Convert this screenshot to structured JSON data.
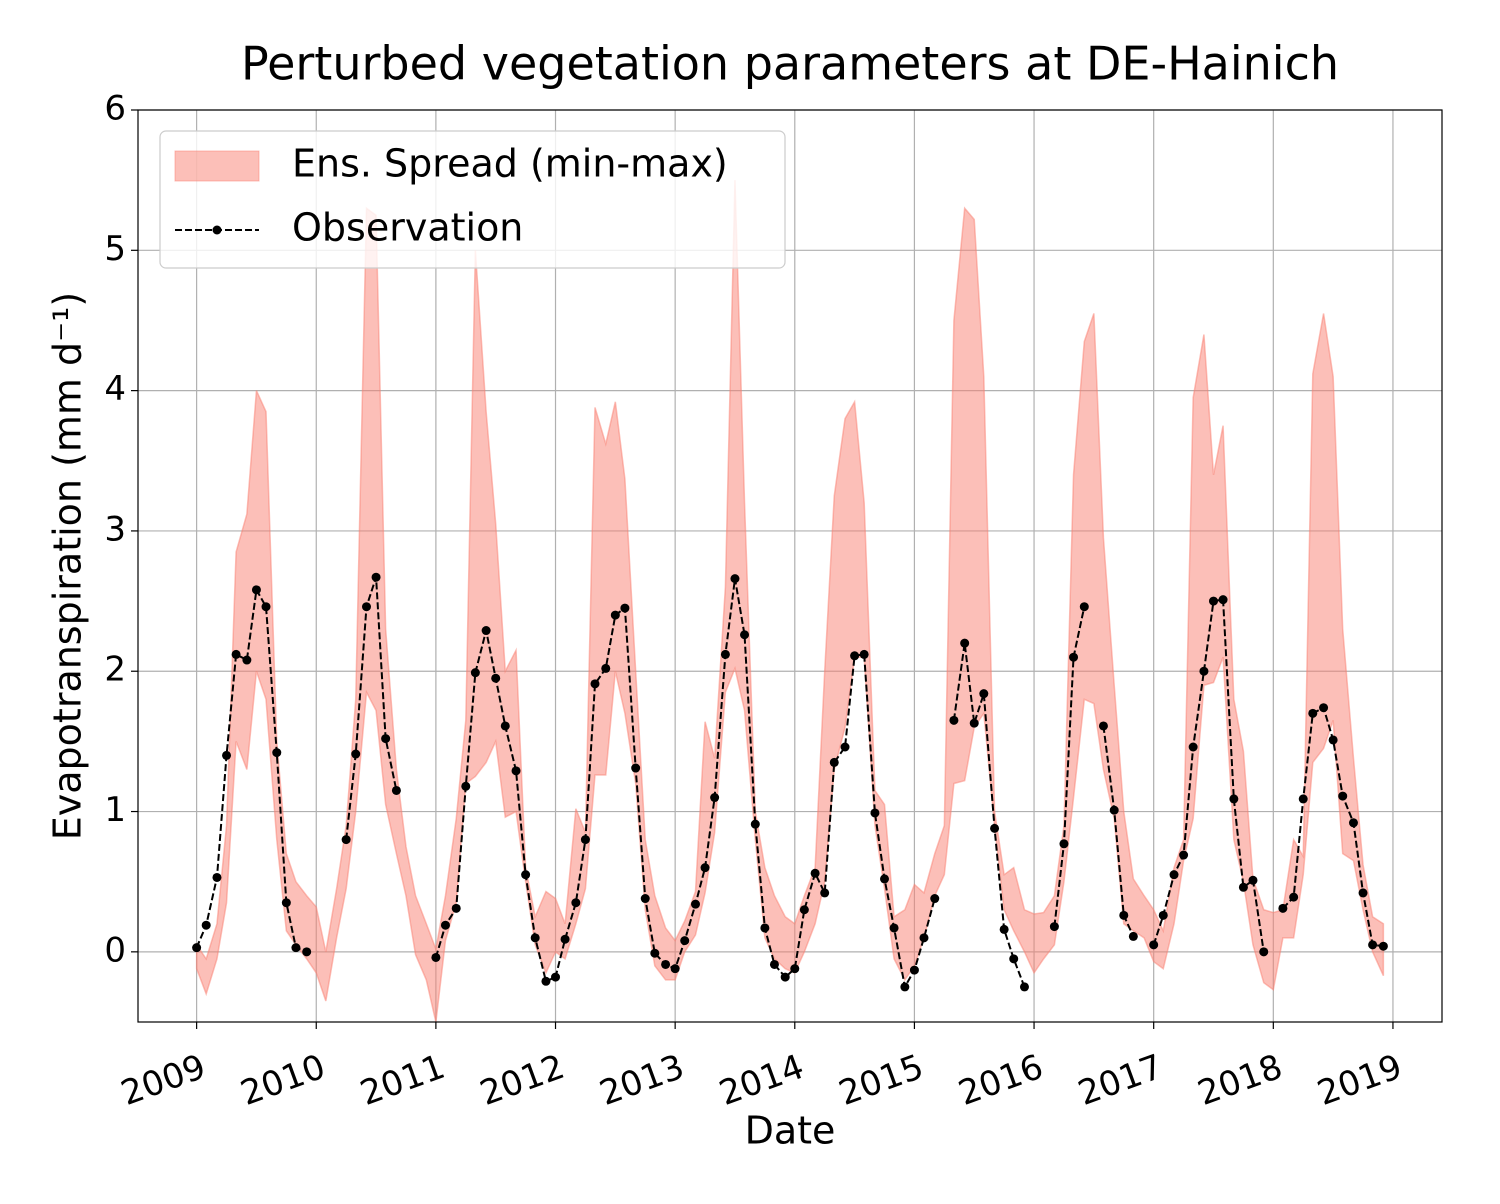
{
  "chart_data": {
    "type": "line",
    "title": "Perturbed vegetation parameters at DE-Hainich",
    "x_label": "Date",
    "y_label": "Evapotranspiration  (mm d⁻¹)",
    "x": [
      2009,
      2009.08,
      2009.17,
      2009.25,
      2009.33,
      2009.42,
      2009.5,
      2009.58,
      2009.67,
      2009.75,
      2009.83,
      2009.92,
      2010,
      2010.08,
      2010.17,
      2010.25,
      2010.33,
      2010.42,
      2010.5,
      2010.58,
      2010.67,
      2010.75,
      2010.83,
      2010.92,
      2011,
      2011.08,
      2011.17,
      2011.25,
      2011.33,
      2011.42,
      2011.5,
      2011.58,
      2011.67,
      2011.75,
      2011.83,
      2011.92,
      2012,
      2012.08,
      2012.17,
      2012.25,
      2012.33,
      2012.42,
      2012.5,
      2012.58,
      2012.67,
      2012.75,
      2012.83,
      2012.92,
      2013,
      2013.08,
      2013.17,
      2013.25,
      2013.33,
      2013.42,
      2013.5,
      2013.58,
      2013.67,
      2013.75,
      2013.83,
      2013.92,
      2014,
      2014.08,
      2014.17,
      2014.25,
      2014.33,
      2014.42,
      2014.5,
      2014.58,
      2014.67,
      2014.75,
      2014.83,
      2014.92,
      2015,
      2015.08,
      2015.17,
      2015.25,
      2015.33,
      2015.42,
      2015.5,
      2015.58,
      2015.67,
      2015.75,
      2015.83,
      2015.92,
      2016,
      2016.08,
      2016.17,
      2016.25,
      2016.33,
      2016.42,
      2016.5,
      2016.58,
      2016.67,
      2016.75,
      2016.83,
      2016.92,
      2017,
      2017.08,
      2017.17,
      2017.25,
      2017.33,
      2017.42,
      2017.5,
      2017.58,
      2017.67,
      2017.75,
      2017.83,
      2017.92,
      2018,
      2018.08,
      2018.17,
      2018.25,
      2018.33,
      2018.42,
      2018.5,
      2018.58,
      2018.67,
      2018.75,
      2018.83,
      2018.92
    ],
    "band": {
      "name": "Ens. Spread (min-max)",
      "color": "#fa8072",
      "alpha": 0.5,
      "lower": [
        -0.12,
        -0.3,
        -0.05,
        0.35,
        1.5,
        1.3,
        2.0,
        1.8,
        0.8,
        0.15,
        0.05,
        -0.05,
        -0.15,
        -0.35,
        0.1,
        0.45,
        1.0,
        1.85,
        1.72,
        1.05,
        0.7,
        0.4,
        -0.02,
        -0.2,
        -0.5,
        0.08,
        0.35,
        1.2,
        1.25,
        1.35,
        1.5,
        0.96,
        1.0,
        0.5,
        0.05,
        -0.15,
        0.0,
        -0.05,
        0.2,
        0.45,
        1.26,
        1.26,
        2.0,
        1.7,
        1.2,
        0.3,
        -0.1,
        -0.2,
        -0.2,
        0.0,
        0.12,
        0.42,
        0.85,
        1.85,
        2.02,
        1.72,
        0.8,
        0.1,
        -0.05,
        -0.12,
        -0.15,
        0.0,
        0.2,
        0.5,
        1.3,
        1.6,
        2.1,
        2.1,
        0.9,
        0.45,
        -0.05,
        -0.2,
        -0.1,
        0.1,
        0.4,
        0.55,
        1.2,
        1.22,
        1.6,
        1.7,
        0.9,
        0.3,
        0.15,
        0.0,
        -0.15,
        -0.05,
        0.05,
        0.5,
        1.1,
        1.8,
        1.77,
        1.3,
        0.95,
        0.2,
        0.15,
        0.1,
        -0.07,
        -0.12,
        0.2,
        0.65,
        0.95,
        1.9,
        1.92,
        2.1,
        0.8,
        0.5,
        0.05,
        -0.22,
        -0.27,
        0.1,
        0.1,
        0.55,
        1.35,
        1.45,
        1.65,
        0.7,
        0.65,
        0.3,
        0.0,
        -0.17
      ],
      "upper": [
        0.05,
        -0.05,
        0.2,
        0.9,
        2.85,
        3.12,
        4.0,
        3.85,
        1.5,
        0.7,
        0.5,
        0.4,
        0.32,
        0.0,
        0.45,
        0.9,
        1.8,
        5.3,
        5.25,
        2.3,
        1.3,
        0.75,
        0.4,
        0.2,
        0.02,
        0.4,
        0.95,
        1.65,
        5.0,
        3.85,
        3.05,
        2.0,
        2.15,
        0.6,
        0.25,
        0.43,
        0.38,
        0.2,
        1.02,
        0.85,
        3.88,
        3.62,
        3.92,
        3.37,
        2.0,
        0.8,
        0.4,
        0.17,
        0.08,
        0.22,
        0.43,
        1.64,
        1.38,
        2.6,
        5.5,
        3.2,
        1.0,
        0.6,
        0.4,
        0.25,
        0.2,
        0.4,
        0.6,
        2.0,
        3.25,
        3.8,
        3.92,
        3.2,
        1.15,
        1.05,
        0.25,
        0.3,
        0.48,
        0.42,
        0.7,
        0.9,
        4.5,
        5.3,
        5.22,
        4.1,
        1.0,
        0.55,
        0.6,
        0.3,
        0.27,
        0.28,
        0.4,
        0.9,
        3.4,
        4.35,
        4.55,
        2.95,
        1.9,
        1.0,
        0.52,
        0.4,
        0.3,
        0.15,
        0.6,
        0.8,
        3.95,
        4.4,
        3.4,
        3.75,
        1.8,
        1.43,
        0.52,
        0.3,
        0.28,
        0.3,
        0.8,
        0.68,
        4.12,
        4.55,
        4.1,
        2.3,
        1.38,
        0.62,
        0.25,
        0.2
      ]
    },
    "series": [
      {
        "name": "Observation",
        "color": "#000000",
        "values": [
          0.03,
          0.19,
          0.53,
          1.4,
          2.12,
          2.08,
          2.58,
          2.46,
          1.42,
          0.35,
          0.03,
          0.0,
          null,
          null,
          null,
          0.8,
          1.41,
          2.46,
          2.67,
          1.52,
          1.15,
          null,
          null,
          null,
          -0.04,
          0.19,
          0.31,
          1.18,
          1.99,
          2.29,
          1.95,
          1.61,
          1.29,
          0.55,
          0.1,
          -0.21,
          -0.18,
          0.09,
          0.35,
          0.8,
          1.91,
          2.02,
          2.4,
          2.45,
          1.31,
          0.38,
          -0.01,
          -0.09,
          -0.12,
          0.08,
          0.34,
          0.6,
          1.1,
          2.12,
          2.66,
          2.26,
          0.91,
          0.17,
          -0.09,
          -0.18,
          -0.12,
          0.3,
          0.56,
          0.42,
          1.35,
          1.46,
          2.11,
          2.12,
          0.99,
          0.52,
          0.17,
          -0.25,
          -0.13,
          0.1,
          0.38,
          null,
          1.65,
          2.2,
          1.63,
          1.84,
          0.88,
          0.16,
          -0.05,
          -0.25,
          null,
          null,
          0.18,
          0.77,
          2.1,
          2.46,
          null,
          1.61,
          1.01,
          0.26,
          0.11,
          null,
          0.05,
          0.26,
          0.55,
          0.69,
          1.46,
          2.0,
          2.5,
          2.51,
          1.09,
          0.46,
          0.51,
          0.0,
          null,
          0.31,
          0.39,
          1.09,
          1.7,
          1.74,
          1.51,
          1.11,
          0.92,
          0.42,
          0.05,
          0.04
        ]
      }
    ],
    "xlim": [
      2008.51,
      2019.41
    ],
    "xticks": [
      2009,
      2010,
      2011,
      2012,
      2013,
      2014,
      2015,
      2016,
      2017,
      2018,
      2019
    ],
    "ylim": [
      -0.5,
      6
    ],
    "yticks": [
      0,
      1,
      2,
      3,
      4,
      5,
      6
    ],
    "grid": true,
    "legend": "upper left"
  }
}
